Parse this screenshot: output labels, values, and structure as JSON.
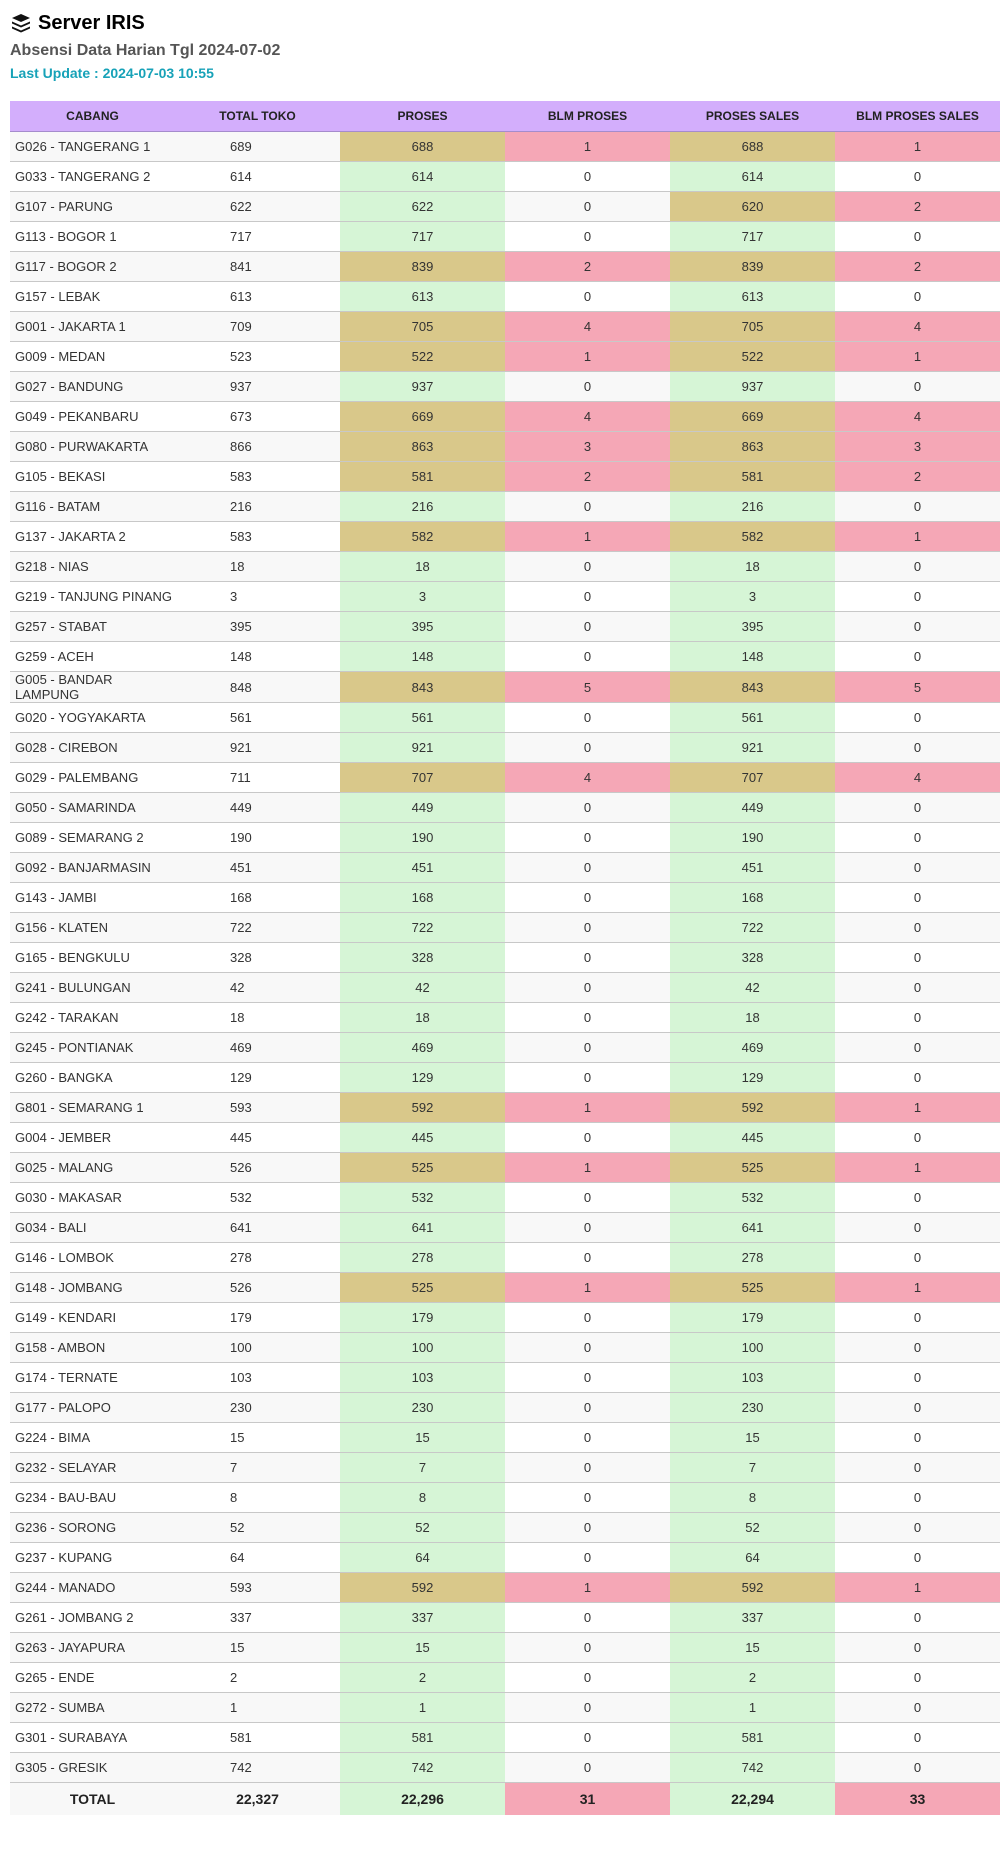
{
  "header": {
    "icon": "server-stack-icon",
    "title": "Server IRIS",
    "subtitle": "Absensi Data Harian Tgl 2024-07-02",
    "last_update": "Last Update : 2024-07-03 10:55"
  },
  "colors": {
    "header_bg": "#d3aefc",
    "complete": "#d6f5d6",
    "partial": "#d9c88a",
    "pending": "#f5a7b6",
    "update_text": "#17a2b8"
  },
  "table": {
    "columns": [
      "CABANG",
      "TOTAL TOKO",
      "PROSES",
      "BLM PROSES",
      "PROSES SALES",
      "BLM PROSES SALES"
    ],
    "rows": [
      [
        "G026 - TANGERANG 1",
        "689",
        "688",
        "1",
        "688",
        "1"
      ],
      [
        "G033 - TANGERANG 2",
        "614",
        "614",
        "0",
        "614",
        "0"
      ],
      [
        "G107 - PARUNG",
        "622",
        "622",
        "0",
        "620",
        "2"
      ],
      [
        "G113 - BOGOR 1",
        "717",
        "717",
        "0",
        "717",
        "0"
      ],
      [
        "G117 - BOGOR 2",
        "841",
        "839",
        "2",
        "839",
        "2"
      ],
      [
        "G157 - LEBAK",
        "613",
        "613",
        "0",
        "613",
        "0"
      ],
      [
        "G001 - JAKARTA 1",
        "709",
        "705",
        "4",
        "705",
        "4"
      ],
      [
        "G009 - MEDAN",
        "523",
        "522",
        "1",
        "522",
        "1"
      ],
      [
        "G027 - BANDUNG",
        "937",
        "937",
        "0",
        "937",
        "0"
      ],
      [
        "G049 - PEKANBARU",
        "673",
        "669",
        "4",
        "669",
        "4"
      ],
      [
        "G080 - PURWAKARTA",
        "866",
        "863",
        "3",
        "863",
        "3"
      ],
      [
        "G105 - BEKASI",
        "583",
        "581",
        "2",
        "581",
        "2"
      ],
      [
        "G116 - BATAM",
        "216",
        "216",
        "0",
        "216",
        "0"
      ],
      [
        "G137 - JAKARTA 2",
        "583",
        "582",
        "1",
        "582",
        "1"
      ],
      [
        "G218 - NIAS",
        "18",
        "18",
        "0",
        "18",
        "0"
      ],
      [
        "G219 - TANJUNG PINANG",
        "3",
        "3",
        "0",
        "3",
        "0"
      ],
      [
        "G257 - STABAT",
        "395",
        "395",
        "0",
        "395",
        "0"
      ],
      [
        "G259 - ACEH",
        "148",
        "148",
        "0",
        "148",
        "0"
      ],
      [
        "G005 - BANDAR LAMPUNG",
        "848",
        "843",
        "5",
        "843",
        "5"
      ],
      [
        "G020 - YOGYAKARTA",
        "561",
        "561",
        "0",
        "561",
        "0"
      ],
      [
        "G028 - CIREBON",
        "921",
        "921",
        "0",
        "921",
        "0"
      ],
      [
        "G029 - PALEMBANG",
        "711",
        "707",
        "4",
        "707",
        "4"
      ],
      [
        "G050 - SAMARINDA",
        "449",
        "449",
        "0",
        "449",
        "0"
      ],
      [
        "G089 - SEMARANG 2",
        "190",
        "190",
        "0",
        "190",
        "0"
      ],
      [
        "G092 - BANJARMASIN",
        "451",
        "451",
        "0",
        "451",
        "0"
      ],
      [
        "G143 - JAMBI",
        "168",
        "168",
        "0",
        "168",
        "0"
      ],
      [
        "G156 - KLATEN",
        "722",
        "722",
        "0",
        "722",
        "0"
      ],
      [
        "G165 - BENGKULU",
        "328",
        "328",
        "0",
        "328",
        "0"
      ],
      [
        "G241 - BULUNGAN",
        "42",
        "42",
        "0",
        "42",
        "0"
      ],
      [
        "G242 - TARAKAN",
        "18",
        "18",
        "0",
        "18",
        "0"
      ],
      [
        "G245 - PONTIANAK",
        "469",
        "469",
        "0",
        "469",
        "0"
      ],
      [
        "G260 - BANGKA",
        "129",
        "129",
        "0",
        "129",
        "0"
      ],
      [
        "G801 - SEMARANG 1",
        "593",
        "592",
        "1",
        "592",
        "1"
      ],
      [
        "G004 - JEMBER",
        "445",
        "445",
        "0",
        "445",
        "0"
      ],
      [
        "G025 - MALANG",
        "526",
        "525",
        "1",
        "525",
        "1"
      ],
      [
        "G030 - MAKASAR",
        "532",
        "532",
        "0",
        "532",
        "0"
      ],
      [
        "G034 - BALI",
        "641",
        "641",
        "0",
        "641",
        "0"
      ],
      [
        "G146 - LOMBOK",
        "278",
        "278",
        "0",
        "278",
        "0"
      ],
      [
        "G148 - JOMBANG",
        "526",
        "525",
        "1",
        "525",
        "1"
      ],
      [
        "G149 - KENDARI",
        "179",
        "179",
        "0",
        "179",
        "0"
      ],
      [
        "G158 - AMBON",
        "100",
        "100",
        "0",
        "100",
        "0"
      ],
      [
        "G174 - TERNATE",
        "103",
        "103",
        "0",
        "103",
        "0"
      ],
      [
        "G177 - PALOPO",
        "230",
        "230",
        "0",
        "230",
        "0"
      ],
      [
        "G224 - BIMA",
        "15",
        "15",
        "0",
        "15",
        "0"
      ],
      [
        "G232 - SELAYAR",
        "7",
        "7",
        "0",
        "7",
        "0"
      ],
      [
        "G234 - BAU-BAU",
        "8",
        "8",
        "0",
        "8",
        "0"
      ],
      [
        "G236 - SORONG",
        "52",
        "52",
        "0",
        "52",
        "0"
      ],
      [
        "G237 - KUPANG",
        "64",
        "64",
        "0",
        "64",
        "0"
      ],
      [
        "G244 - MANADO",
        "593",
        "592",
        "1",
        "592",
        "1"
      ],
      [
        "G261 - JOMBANG 2",
        "337",
        "337",
        "0",
        "337",
        "0"
      ],
      [
        "G263 - JAYAPURA",
        "15",
        "15",
        "0",
        "15",
        "0"
      ],
      [
        "G265 - ENDE",
        "2",
        "2",
        "0",
        "2",
        "0"
      ],
      [
        "G272 - SUMBA",
        "1",
        "1",
        "0",
        "1",
        "0"
      ],
      [
        "G301 - SURABAYA",
        "581",
        "581",
        "0",
        "581",
        "0"
      ],
      [
        "G305 - GRESIK",
        "742",
        "742",
        "0",
        "742",
        "0"
      ]
    ],
    "total": [
      "TOTAL",
      "22,327",
      "22,296",
      "31",
      "22,294",
      "33"
    ]
  }
}
